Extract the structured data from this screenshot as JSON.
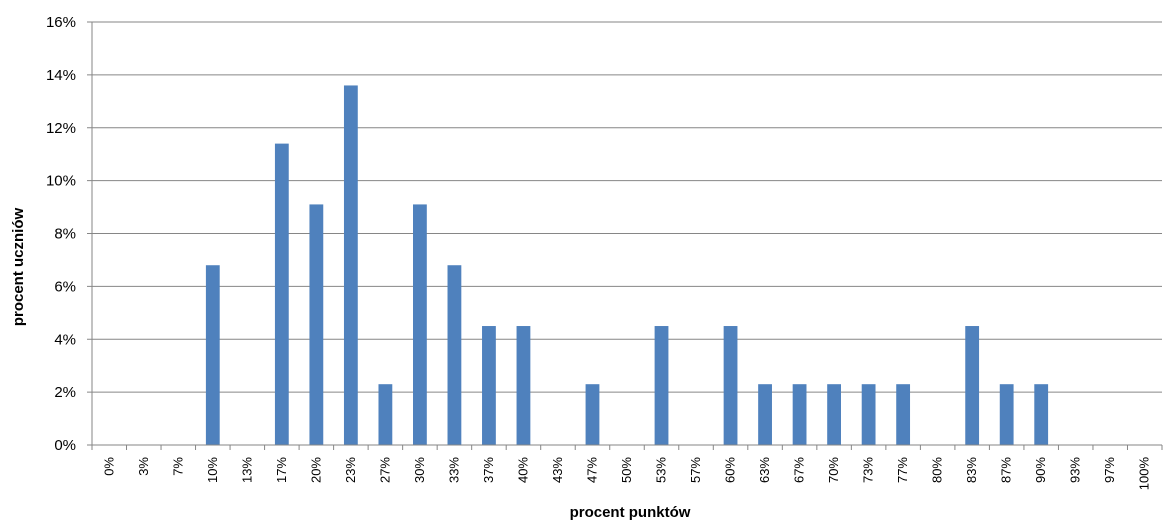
{
  "chart_data": {
    "type": "bar",
    "xlabel": "procent punktów",
    "ylabel": "procent uczniów",
    "ylim": [
      0,
      16
    ],
    "y_ticks": [
      "0%",
      "2%",
      "4%",
      "6%",
      "8%",
      "10%",
      "12%",
      "14%",
      "16%"
    ],
    "y_tick_values": [
      0,
      2,
      4,
      6,
      8,
      10,
      12,
      14,
      16
    ],
    "grid": true,
    "legend": "none",
    "bar_color": "#4f81bd",
    "categories": [
      "0%",
      "3%",
      "7%",
      "10%",
      "13%",
      "17%",
      "20%",
      "23%",
      "27%",
      "30%",
      "33%",
      "37%",
      "40%",
      "43%",
      "47%",
      "50%",
      "53%",
      "57%",
      "60%",
      "63%",
      "67%",
      "70%",
      "73%",
      "77%",
      "80%",
      "83%",
      "87%",
      "90%",
      "93%",
      "97%",
      "100%"
    ],
    "values": [
      0,
      0,
      0,
      6.8,
      0,
      11.4,
      9.1,
      13.6,
      2.3,
      9.1,
      6.8,
      4.5,
      4.5,
      0,
      2.3,
      0,
      4.5,
      0,
      4.5,
      2.3,
      2.3,
      2.3,
      2.3,
      2.3,
      0,
      4.5,
      2.3,
      2.3,
      0,
      0,
      0
    ]
  }
}
